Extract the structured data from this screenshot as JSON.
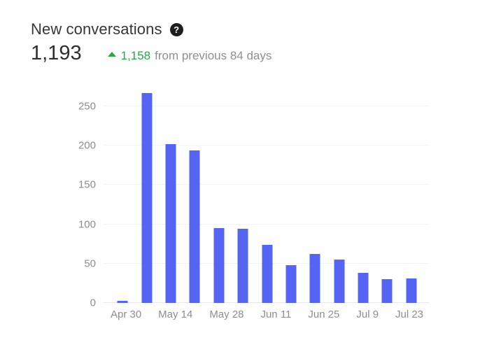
{
  "header": {
    "title": "New conversations",
    "help_glyph": "?"
  },
  "metric": {
    "value": "1,193",
    "delta_value": "1,158",
    "delta_text": "from previous 84 days",
    "delta_direction": "up"
  },
  "colors": {
    "bar": "#5664f3",
    "positive_green": "#27a74a",
    "muted_text": "#8d8d8d",
    "title_text": "#363636",
    "gridline": "#f3f4f5"
  },
  "chart_data": {
    "type": "bar",
    "title": "New conversations",
    "values": [
      3,
      267,
      202,
      194,
      95,
      94,
      74,
      48,
      62,
      55,
      38,
      30,
      31
    ],
    "xtick_labels": [
      "Apr 30",
      "May 14",
      "May 28",
      "Jun 11",
      "Jun 25",
      "Jul 9",
      "Jul 23"
    ],
    "xtick_every_n_bars": 2,
    "yticks": [
      0,
      50,
      100,
      150,
      200,
      250
    ],
    "ylim": [
      0,
      250
    ],
    "grid": true,
    "legend": "none",
    "bar_color": "#5664f3"
  }
}
